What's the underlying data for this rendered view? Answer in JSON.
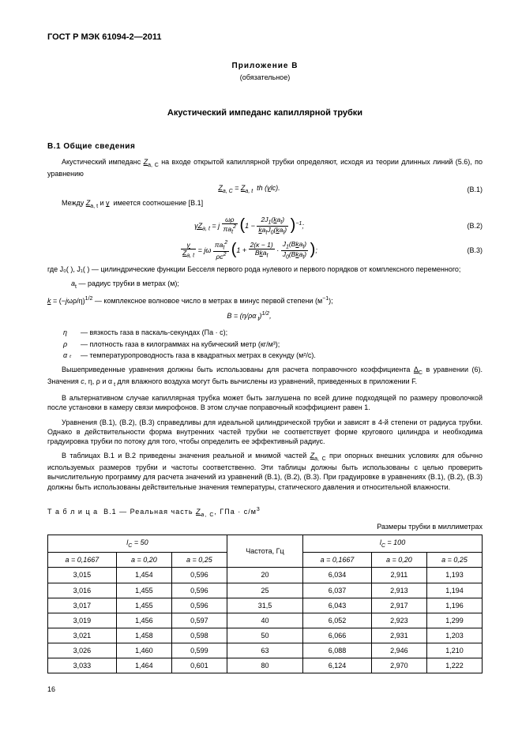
{
  "header": {
    "doc_id": "ГОСТ Р МЭК 61094-2—2011"
  },
  "annex": {
    "name": "Приложение В",
    "status": "(обязательное)"
  },
  "title": "Акустический импеданс капиллярной трубки",
  "section": {
    "head": "В.1 Общие сведения"
  },
  "p1": "Акустический импеданс Zₐ, C на входе открытой капиллярной трубки определяют, исходя из теории длинных линий (5.6), по уравнению",
  "eq1": {
    "lhs": "Z",
    "lsub": "a, C",
    "eqs": " = ",
    "rhs1": "Z",
    "rsub": "a, t",
    "rhs2": " th (",
    "gamma": "γ",
    "rhs3": "lc).",
    "num": "(B.1)"
  },
  "p2a": "Между ",
  "p2b": " и ",
  "p2c": " имеется соотношение [В.1]",
  "zat": "Z",
  "zat_sub": "a, t",
  "gamma": "γ",
  "eq2": {
    "gamma": "γ",
    "z": "Z",
    "zsub": "a, t",
    "eq": " = j ",
    "num": "ωρ",
    "den": "πa",
    "den_sub": "t",
    "den_exp": "2",
    "inner_pre": "1 − ",
    "in_num1": "2J",
    "in_num1_sub": "1",
    "in_num1_arg": "(ka",
    "in_num1_argsub": "t",
    "in_num1_close": ")",
    "in_den1": "ka",
    "in_den1_sub": "t",
    "in_den1b": "J",
    "in_den1b_sub": "0",
    "in_den1b_arg": "(ka",
    "in_den1b_argsub": "t",
    "in_den1b_close": ")",
    "exp": "−1",
    "tail": ";",
    "numlabel": "(B.2)"
  },
  "eq3": {
    "gamma": "γ",
    "z": "Z",
    "zsub": "a, t",
    "eq": " = jω ",
    "num": "πa",
    "num_sub": "t",
    "num_exp": "2",
    "den": "ρc",
    "den_exp": "2",
    "inner_pre": "1 + ",
    "in_num1": "2(κ − 1)",
    "in_den1": "Bka",
    "in_den1_sub": "t",
    "mid": " · ",
    "in_num2": "J",
    "in_num2_sub": "1",
    "in_num2_arg": "(Bka",
    "in_num2_argsub": "t",
    "in_num2_close": ")",
    "in_den2": "J",
    "in_den2_sub": "0",
    "in_den2_arg": "(Bka",
    "in_den2_argsub": "t",
    "in_den2_close": ")",
    "tail": ";",
    "numlabel": "(B.3)"
  },
  "where_intro": "где J₀( ), J₁( ) — цилиндрические функции Бесселя первого рода нулевого и первого порядков от комплексного переменного;",
  "where_a": "aₜ — радиус трубки в метрах (м);",
  "where_k": "k = (−jωρ/η)¹ᐟ² — комплексное волновое число в метрах в минус первой степени (м⁻¹);",
  "eqB": "B = (η/ρα ₜ)¹ᐟ²,",
  "defs": [
    {
      "sym": "η",
      "txt": "— вязкость газа в паскаль-секундах (Па · с);"
    },
    {
      "sym": "ρ",
      "txt": "— плотность газа в килограммах на кубический метр (кг/м³);"
    },
    {
      "sym": "α ₜ",
      "txt": "— температуропроводность газа в квадратных метрах в секунду (м²/с)."
    }
  ],
  "p3": "Вышеприведенные уравнения должны быть использованы для расчета поправочного коэффициента ΔC в уравнении (6). Значения c, η, ρ и α ₜ для влажного воздуха могут быть вычислены из уравнений, приведенных в приложении F.",
  "p4": "В альтернативном случае капиллярная трубка может быть заглушена по всей длине подходящей по размеру проволочкой после установки в камеру связи микрофонов. В этом случае поправочный коэффициент равен 1.",
  "p5": "Уравнения (В.1), (В.2), (В.3) справедливы для идеальной цилиндрической трубки и зависят в 4-й степени от радиуса трубки. Однако в действительности форма внутренних частей трубки не соответствует форме кругового цилиндра и необходима градуировка трубки по потоку для того, чтобы определить ее эффективный радиус.",
  "p6": "В таблицах В.1 и В.2 приведены значения реальной и мнимой частей Zₐ, C при опорных внешних условиях для обычно используемых размеров трубки и частоты соответственно. Эти таблицы должны быть использованы с целью проверить вычислительную программу для расчета значений из уравнений (В.1), (В.2), (В.3). При градуировке в уравнениях (В.1), (В.2), (В.3) должны быть использованы действительные значения температуры, статического давления и относительной влажности.",
  "table": {
    "caption": "Т а б л и ц а  В.1 — Реальная часть Zₐ, C, ГПа · с/м³",
    "units": "Размеры трубки в миллиметрах",
    "grp1": "lC = 50",
    "grp2": "lC = 100",
    "freq": "Частота, Гц",
    "col_a1": "a = 0,1667",
    "col_a2": "a = 0,20",
    "col_a3": "a = 0,25",
    "rows": [
      [
        "3,015",
        "1,454",
        "0,596",
        "20",
        "6,034",
        "2,911",
        "1,193"
      ],
      [
        "3,016",
        "1,455",
        "0,596",
        "25",
        "6,037",
        "2,913",
        "1,194"
      ],
      [
        "3,017",
        "1,455",
        "0,596",
        "31,5",
        "6,043",
        "2,917",
        "1,196"
      ],
      [
        "3,019",
        "1,456",
        "0,597",
        "40",
        "6,052",
        "2,923",
        "1,299"
      ],
      [
        "3,021",
        "1,458",
        "0,598",
        "50",
        "6,066",
        "2,931",
        "1,203"
      ],
      [
        "3,026",
        "1,460",
        "0,599",
        "63",
        "6,088",
        "2,946",
        "1,210"
      ],
      [
        "3,033",
        "1,464",
        "0,601",
        "80",
        "6,124",
        "2,970",
        "1,222"
      ]
    ]
  },
  "page_number": "16"
}
